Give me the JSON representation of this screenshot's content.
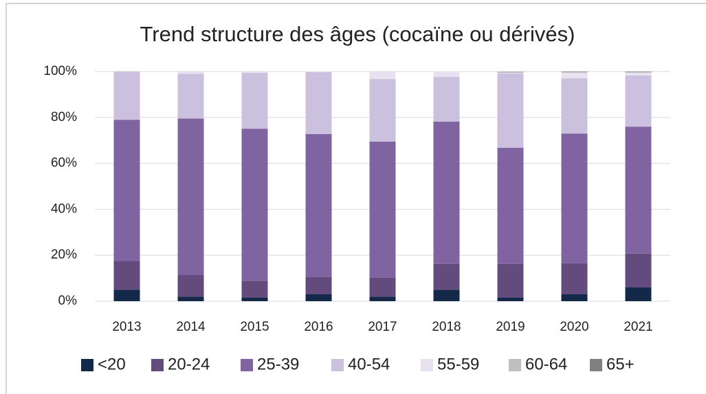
{
  "chart_data": {
    "type": "stacked_bar",
    "title": "Trend structure des âges (cocaïne ou dérivés)",
    "categories": [
      "2013",
      "2014",
      "2015",
      "2016",
      "2017",
      "2018",
      "2019",
      "2020",
      "2021"
    ],
    "series": [
      {
        "name": "<20",
        "color": "#14294a",
        "values": [
          5,
          2,
          1.5,
          3,
          2,
          5,
          1.5,
          3,
          6
        ]
      },
      {
        "name": "20-24",
        "color": "#634b7e",
        "values": [
          12.5,
          9.5,
          7.2,
          7.5,
          8.2,
          11.2,
          14.7,
          13.5,
          14.7
        ]
      },
      {
        "name": "25-39",
        "color": "#8064a2",
        "values": [
          61.5,
          68,
          66.4,
          62.3,
          59.3,
          62,
          50.6,
          56.5,
          55.3
        ]
      },
      {
        "name": "40-54",
        "color": "#cbc0dd",
        "values": [
          21,
          19.5,
          24.3,
          27,
          27.2,
          19.5,
          32.3,
          24,
          22.2
        ]
      },
      {
        "name": "55-59",
        "color": "#e7e1f0",
        "values": [
          0,
          1,
          0.6,
          0.3,
          3.3,
          2.4,
          0.3,
          2.5,
          1.3
        ]
      },
      {
        "name": "60-64",
        "color": "#bfbfbf",
        "values": [
          0,
          0,
          0,
          0,
          0,
          0,
          0.6,
          0.3,
          0.3
        ]
      },
      {
        "name": "65+",
        "color": "#808080",
        "values": [
          0,
          0,
          0,
          0,
          0,
          0,
          0,
          0.2,
          0.2
        ]
      }
    ],
    "ylim": [
      0,
      100
    ],
    "yticks": [
      {
        "value": 0,
        "label": "0%"
      },
      {
        "value": 20,
        "label": "20%"
      },
      {
        "value": 40,
        "label": "40%"
      },
      {
        "value": 60,
        "label": "60%"
      },
      {
        "value": 80,
        "label": "80%"
      },
      {
        "value": 100,
        "label": "100%"
      }
    ],
    "grid": true,
    "legend": "bottom"
  }
}
